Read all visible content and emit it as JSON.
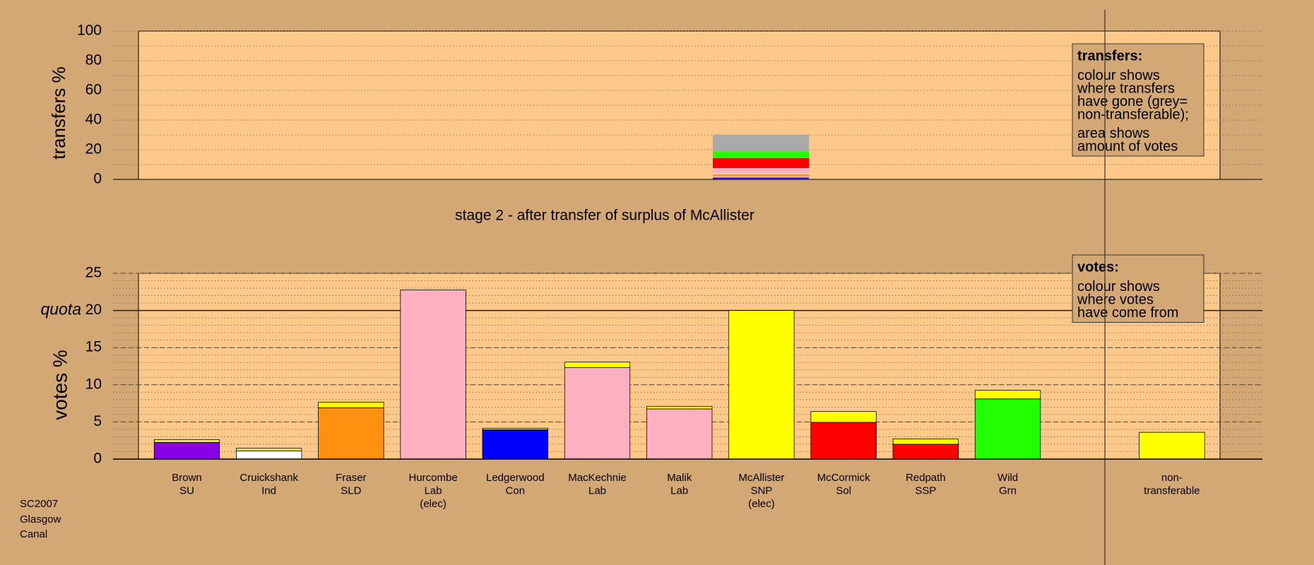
{
  "chart_data": [
    {
      "type": "stacked-column",
      "y_label": "transfers %",
      "ylim": [
        0,
        100
      ],
      "yticks": [
        0,
        20,
        40,
        60,
        80,
        100
      ],
      "minor_step": 10,
      "segments": [
        {
          "color": "#8a00e6",
          "value": 0.6
        },
        {
          "color": "#0000ff",
          "value": 0.6
        },
        {
          "color": "#ffb0c0",
          "value": 1.2
        },
        {
          "color": "#ff9010",
          "value": 1.2
        },
        {
          "color": "#ffffff",
          "value": 0.6
        },
        {
          "color": "#ffb0c0",
          "value": 3.4
        },
        {
          "color": "#ff0000",
          "value": 6.8
        },
        {
          "color": "#22ff00",
          "value": 4.5
        },
        {
          "color": "#aaaaaa",
          "value": 11.3
        }
      ],
      "legend": {
        "title": "transfers:",
        "paragraphs": [
          [
            "colour shows",
            "where transfers",
            "have gone (grey=",
            "non-transferable);"
          ],
          [
            "area shows",
            "amount of votes"
          ]
        ]
      }
    },
    {
      "type": "bar",
      "title": "stage 2 - after transfer of surplus of McAllister",
      "y_label": "votes %",
      "ylim": [
        0,
        25
      ],
      "yticks": [
        0,
        5,
        10,
        15,
        20,
        25
      ],
      "minor_step": 1,
      "quota": {
        "value": 20,
        "label": "quota"
      },
      "categories": [
        [
          "Brown",
          "SU"
        ],
        [
          "Cruickshank",
          "Ind"
        ],
        [
          "Fraser",
          "SLD"
        ],
        [
          "Hurcombe",
          "Lab",
          "(elec)"
        ],
        [
          "Ledgerwood",
          "Con"
        ],
        [
          "MacKechnie",
          "Lab"
        ],
        [
          "Malik",
          "Lab"
        ],
        [
          "McAllister",
          "SNP",
          "(elec)"
        ],
        [
          "McCormick",
          "Sol"
        ],
        [
          "Redpath",
          "SSP"
        ],
        [
          "Wild",
          "Grn"
        ],
        null,
        [
          "non-",
          "transferable"
        ]
      ],
      "base_values": [
        2.25,
        1.1,
        6.9,
        22.75,
        3.95,
        12.3,
        6.75,
        20,
        4.95,
        2.0,
        8.1,
        null,
        null
      ],
      "base_colors": [
        "#8a00e6",
        "#ffffff",
        "#ff9010",
        "#ffb0c0",
        "#0000ff",
        "#ffb0c0",
        "#ffb0c0",
        "#ffff00",
        "#ff0000",
        "#ff0000",
        "#22ff00",
        null,
        null
      ],
      "transfer_values": [
        0.35,
        0.35,
        0.75,
        null,
        0.2,
        0.75,
        0.35,
        null,
        1.45,
        0.7,
        1.15,
        null,
        3.6
      ],
      "transfer_color": "#ffff00",
      "legend": {
        "title": "votes:",
        "paragraphs": [
          [
            "colour shows",
            "where votes",
            "have come from"
          ]
        ]
      }
    }
  ],
  "footer": [
    "SC2007",
    "Glasgow",
    "Canal"
  ]
}
